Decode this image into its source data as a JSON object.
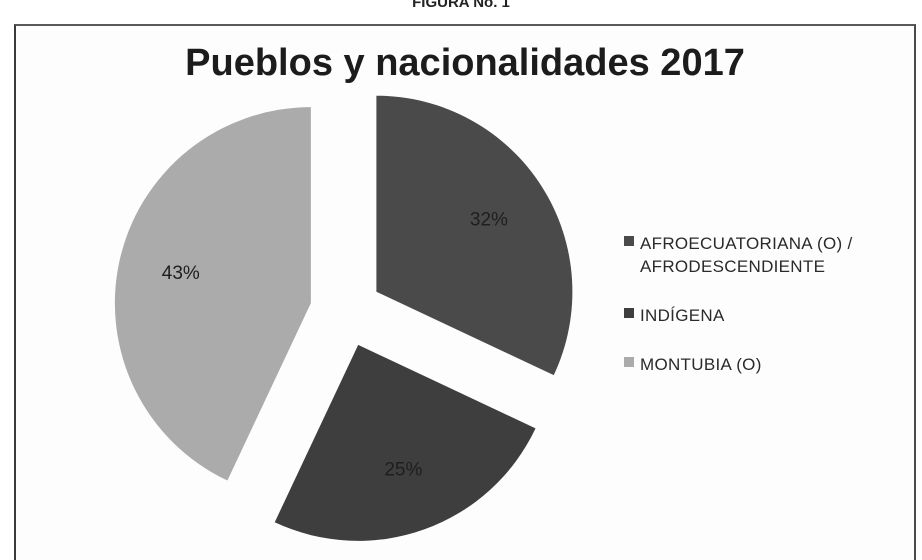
{
  "figure_caption": "FIGURA No. 1",
  "chart_data": {
    "type": "pie",
    "title": "Pueblos y nacionalidades 2017",
    "legend_position": "right",
    "exploded": true,
    "slices": [
      {
        "label": "AFROECUATORIANA (O) / AFRODESCENDIENTE",
        "value": 32,
        "display": "32%",
        "color": "#4a4a4a"
      },
      {
        "label": "INDÍGENA",
        "value": 25,
        "display": "25%",
        "color": "#3e3e3e"
      },
      {
        "label": "MONTUBIA (O)",
        "value": 43,
        "display": "43%",
        "color": "#ababab"
      }
    ]
  }
}
